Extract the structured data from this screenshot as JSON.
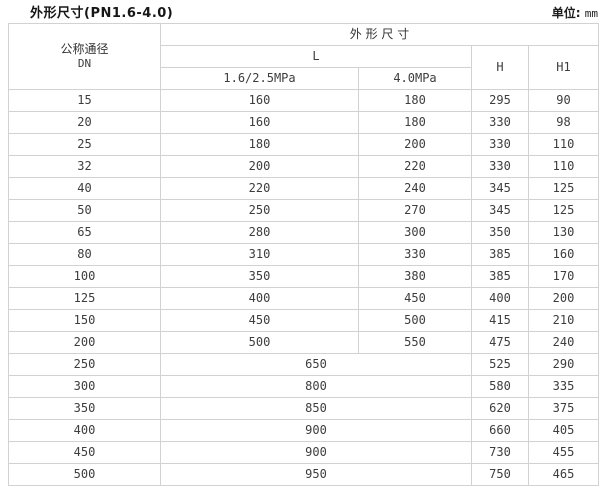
{
  "page": {
    "title": "外形尺寸(PN1.6-4.0)",
    "unit_label": "单位:",
    "unit_value": "mm"
  },
  "table": {
    "dn_label": "公称通径",
    "dn_sub_label": "DN",
    "group_label": "外 形 尺 寸",
    "l_label": "L",
    "l_sub1_label": "1.6/2.5MPa",
    "l_sub2_label": "4.0MPa",
    "h_label": "H",
    "h1_label": "H1",
    "rows": [
      {
        "dn": "15",
        "l1": "160",
        "l2": "180",
        "h": "295",
        "h1": "90"
      },
      {
        "dn": "20",
        "l1": "160",
        "l2": "180",
        "h": "330",
        "h1": "98"
      },
      {
        "dn": "25",
        "l1": "180",
        "l2": "200",
        "h": "330",
        "h1": "110"
      },
      {
        "dn": "32",
        "l1": "200",
        "l2": "220",
        "h": "330",
        "h1": "110"
      },
      {
        "dn": "40",
        "l1": "220",
        "l2": "240",
        "h": "345",
        "h1": "125"
      },
      {
        "dn": "50",
        "l1": "250",
        "l2": "270",
        "h": "345",
        "h1": "125"
      },
      {
        "dn": "65",
        "l1": "280",
        "l2": "300",
        "h": "350",
        "h1": "130"
      },
      {
        "dn": "80",
        "l1": "310",
        "l2": "330",
        "h": "385",
        "h1": "160"
      },
      {
        "dn": "100",
        "l1": "350",
        "l2": "380",
        "h": "385",
        "h1": "170"
      },
      {
        "dn": "125",
        "l1": "400",
        "l2": "450",
        "h": "400",
        "h1": "200"
      },
      {
        "dn": "150",
        "l1": "450",
        "l2": "500",
        "h": "415",
        "h1": "210"
      },
      {
        "dn": "200",
        "l1": "500",
        "l2": "550",
        "h": "475",
        "h1": "240"
      }
    ],
    "merged_rows": [
      {
        "dn": "250",
        "l": "650",
        "h": "525",
        "h1": "290"
      },
      {
        "dn": "300",
        "l": "800",
        "h": "580",
        "h1": "335"
      },
      {
        "dn": "350",
        "l": "850",
        "h": "620",
        "h1": "375"
      },
      {
        "dn": "400",
        "l": "900",
        "h": "660",
        "h1": "405"
      },
      {
        "dn": "450",
        "l": "900",
        "h": "730",
        "h1": "455"
      },
      {
        "dn": "500",
        "l": "950",
        "h": "750",
        "h1": "465"
      }
    ]
  },
  "colors": {
    "border": "#d2d2d2",
    "text": "#3d3d3d",
    "title_text": "#161616",
    "background": "#ffffff"
  },
  "chart_data": {
    "type": "table",
    "title": "外形尺寸(PN1.6-4.0)",
    "unit": "mm",
    "columns": [
      "公称通径 DN",
      "外形尺寸 L 1.6/2.5MPa",
      "外形尺寸 L 4.0MPa",
      "外形尺寸 H",
      "外形尺寸 H1"
    ],
    "rows": [
      [
        15,
        160,
        180,
        295,
        90
      ],
      [
        20,
        160,
        180,
        330,
        98
      ],
      [
        25,
        180,
        200,
        330,
        110
      ],
      [
        32,
        200,
        220,
        330,
        110
      ],
      [
        40,
        220,
        240,
        345,
        125
      ],
      [
        50,
        250,
        270,
        345,
        125
      ],
      [
        65,
        280,
        300,
        350,
        130
      ],
      [
        80,
        310,
        330,
        385,
        160
      ],
      [
        100,
        350,
        380,
        385,
        170
      ],
      [
        125,
        400,
        450,
        400,
        200
      ],
      [
        150,
        450,
        500,
        415,
        210
      ],
      [
        200,
        500,
        550,
        475,
        240
      ],
      [
        250,
        650,
        650,
        525,
        290
      ],
      [
        300,
        800,
        800,
        580,
        335
      ],
      [
        350,
        850,
        850,
        620,
        375
      ],
      [
        400,
        900,
        900,
        660,
        405
      ],
      [
        450,
        900,
        900,
        730,
        455
      ],
      [
        500,
        950,
        950,
        750,
        465
      ]
    ],
    "notes": "For DN 250-500 the L value is a single merged cell spanning both pressure-class columns."
  }
}
